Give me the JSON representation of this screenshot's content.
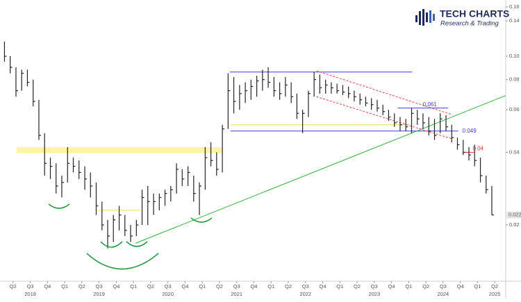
{
  "chart_data": {
    "type": "ohlc",
    "logo_title": "TECH CHARTS",
    "logo_subtitle": "Research & Trading",
    "color": "#222222",
    "log_scale": true,
    "grid": false,
    "xlim": [
      2018.06,
      2025.41
    ],
    "ylim": [
      0.0117,
      0.171
    ],
    "yticks": [
      0.02,
      0.04,
      0.06,
      0.08,
      {
        "value": 0.1,
        "label": "0.10"
      },
      0.14,
      0.16
    ],
    "xticks": [
      {
        "value": 2018.25,
        "label": "Q2"
      },
      {
        "value": 2018.5,
        "label": "Q3"
      },
      {
        "value": 2018.75,
        "label": "Q4"
      },
      {
        "value": 2019,
        "label": "Q1"
      },
      {
        "value": 2019.25,
        "label": "Q2"
      },
      {
        "value": 2019.5,
        "label": "Q3"
      },
      {
        "value": 2019.75,
        "label": "Q4"
      },
      {
        "value": 2020,
        "label": "Q1"
      },
      {
        "value": 2020.25,
        "label": "Q2"
      },
      {
        "value": 2020.5,
        "label": "Q3"
      },
      {
        "value": 2020.75,
        "label": "Q4"
      },
      {
        "value": 2021,
        "label": "Q1"
      },
      {
        "value": 2021.25,
        "label": "Q2"
      },
      {
        "value": 2021.5,
        "label": "Q3"
      },
      {
        "value": 2021.75,
        "label": "Q4"
      },
      {
        "value": 2022,
        "label": "Q1"
      },
      {
        "value": 2022.25,
        "label": "Q2"
      },
      {
        "value": 2022.5,
        "label": "Q3"
      },
      {
        "value": 2022.75,
        "label": "Q4"
      },
      {
        "value": 2023,
        "label": "Q1"
      },
      {
        "value": 2023.25,
        "label": "Q2"
      },
      {
        "value": 2023.5,
        "label": "Q3"
      },
      {
        "value": 2023.75,
        "label": "Q4"
      },
      {
        "value": 2024,
        "label": "Q1"
      },
      {
        "value": 2024.25,
        "label": "Q2"
      },
      {
        "value": 2024.5,
        "label": "Q3"
      },
      {
        "value": 2024.75,
        "label": "Q4"
      },
      {
        "value": 2025,
        "label": "Q1"
      },
      {
        "value": 2025.25,
        "label": "Q2"
      }
    ],
    "year_ticks": [
      {
        "value": 2018.5,
        "label": "2018"
      },
      {
        "value": 2019.5,
        "label": "2019"
      },
      {
        "value": 2020.5,
        "label": "2020"
      },
      {
        "value": 2021.5,
        "label": "2021"
      },
      {
        "value": 2022.5,
        "label": "2022"
      },
      {
        "value": 2023.5,
        "label": "2023"
      },
      {
        "value": 2024.5,
        "label": "2024"
      },
      {
        "value": 2025.25,
        "label": "2025"
      }
    ],
    "x": [
      2018.125,
      2018.208,
      2018.292,
      2018.375,
      2018.458,
      2018.542,
      2018.625,
      2018.708,
      2018.792,
      2018.875,
      2018.958,
      2019.042,
      2019.125,
      2019.208,
      2019.292,
      2019.375,
      2019.458,
      2019.542,
      2019.625,
      2019.708,
      2019.792,
      2019.875,
      2019.958,
      2020.042,
      2020.125,
      2020.208,
      2020.292,
      2020.375,
      2020.458,
      2020.542,
      2020.625,
      2020.708,
      2020.792,
      2020.875,
      2020.958,
      2021.042,
      2021.125,
      2021.208,
      2021.292,
      2021.375,
      2021.458,
      2021.542,
      2021.625,
      2021.708,
      2021.792,
      2021.875,
      2021.958,
      2022.042,
      2022.125,
      2022.208,
      2022.292,
      2022.375,
      2022.458,
      2022.542,
      2022.625,
      2022.708,
      2022.792,
      2022.875,
      2022.958,
      2023.042,
      2023.125,
      2023.208,
      2023.292,
      2023.375,
      2023.458,
      2023.542,
      2023.625,
      2023.708,
      2023.792,
      2023.875,
      2023.958,
      2024.042,
      2024.125,
      2024.208,
      2024.292,
      2024.375,
      2024.458,
      2024.542,
      2024.625,
      2024.708,
      2024.792,
      2024.875,
      2024.958,
      2025.042,
      2025.125,
      2025.208
    ],
    "high": [
      0.115,
      0.1,
      0.09,
      0.088,
      0.088,
      0.08,
      0.066,
      0.048,
      0.038,
      0.036,
      0.032,
      0.042,
      0.038,
      0.037,
      0.035,
      0.033,
      0.03,
      0.025,
      0.021,
      0.022,
      0.024,
      0.022,
      0.02,
      0.021,
      0.028,
      0.029,
      0.027,
      0.027,
      0.028,
      0.029,
      0.036,
      0.034,
      0.035,
      0.032,
      0.03,
      0.042,
      0.044,
      0.04,
      0.052,
      0.085,
      0.082,
      0.076,
      0.078,
      0.08,
      0.083,
      0.088,
      0.09,
      0.082,
      0.078,
      0.082,
      0.078,
      0.07,
      0.06,
      0.072,
      0.086,
      0.084,
      0.08,
      0.078,
      0.077,
      0.076,
      0.075,
      0.072,
      0.07,
      0.068,
      0.067,
      0.066,
      0.063,
      0.06,
      0.058,
      0.056,
      0.055,
      0.061,
      0.06,
      0.058,
      0.056,
      0.055,
      0.058,
      0.057,
      0.052,
      0.046,
      0.045,
      0.042,
      0.043,
      0.038,
      0.032,
      0.029
    ],
    "low": [
      0.095,
      0.085,
      0.068,
      0.072,
      0.075,
      0.062,
      0.045,
      0.032,
      0.031,
      0.027,
      0.026,
      0.03,
      0.033,
      0.031,
      0.028,
      0.026,
      0.022,
      0.019,
      0.016,
      0.017,
      0.019,
      0.018,
      0.017,
      0.018,
      0.02,
      0.02,
      0.022,
      0.023,
      0.024,
      0.025,
      0.027,
      0.029,
      0.029,
      0.025,
      0.022,
      0.028,
      0.035,
      0.032,
      0.033,
      0.05,
      0.058,
      0.06,
      0.064,
      0.066,
      0.068,
      0.072,
      0.074,
      0.068,
      0.066,
      0.068,
      0.064,
      0.055,
      0.048,
      0.056,
      0.068,
      0.07,
      0.07,
      0.07,
      0.07,
      0.069,
      0.067,
      0.065,
      0.063,
      0.062,
      0.06,
      0.059,
      0.057,
      0.054,
      0.051,
      0.049,
      0.049,
      0.048,
      0.052,
      0.05,
      0.047,
      0.045,
      0.048,
      0.049,
      0.044,
      0.041,
      0.039,
      0.037,
      0.035,
      0.03,
      0.027,
      0.022
    ],
    "close": [
      0.1,
      0.09,
      0.072,
      0.085,
      0.078,
      0.065,
      0.047,
      0.036,
      0.035,
      0.029,
      0.03,
      0.036,
      0.035,
      0.033,
      0.031,
      0.029,
      0.024,
      0.02,
      0.018,
      0.021,
      0.022,
      0.019,
      0.018,
      0.02,
      0.026,
      0.025,
      0.025,
      0.026,
      0.027,
      0.028,
      0.034,
      0.031,
      0.033,
      0.027,
      0.029,
      0.038,
      0.037,
      0.034,
      0.05,
      0.072,
      0.065,
      0.07,
      0.072,
      0.075,
      0.079,
      0.08,
      0.078,
      0.072,
      0.07,
      0.076,
      0.068,
      0.058,
      0.058,
      0.07,
      0.08,
      0.074,
      0.076,
      0.074,
      0.072,
      0.071,
      0.07,
      0.068,
      0.066,
      0.064,
      0.063,
      0.061,
      0.059,
      0.056,
      0.053,
      0.052,
      0.051,
      0.058,
      0.055,
      0.053,
      0.049,
      0.047,
      0.055,
      0.051,
      0.046,
      0.043,
      0.04,
      0.039,
      0.037,
      0.032,
      0.028,
      0.022
    ],
    "zones": [
      {
        "low": 0.0397,
        "high": 0.042,
        "start": 2018.3,
        "end": 2021.3,
        "color": "#fff4a3"
      }
    ],
    "levels": [
      {
        "value": 0.086,
        "start": 2021.4,
        "end": 2024.05,
        "color": "#3b3bd1",
        "labeled": false
      },
      {
        "value": 0.061,
        "start": 2023.84,
        "end": 2024.57,
        "color": "#3b3bd1",
        "labeled": true
      },
      {
        "value": 0.049,
        "start": 2021.41,
        "end": 2024.72,
        "color": "#3b3bd1",
        "labeled": true
      },
      {
        "value": 0.04,
        "start": 2024.82,
        "end": 2024.95,
        "color": "#e03030",
        "labeled": true
      },
      {
        "value": 0.052,
        "start": 2021.41,
        "end": 2024.0,
        "color": "#f5ea8a",
        "labeled": false
      },
      {
        "value": 0.023,
        "start": 2019.5,
        "end": 2020.1,
        "color": "#f5ea8a",
        "labeled": false
      }
    ],
    "trendlines": [
      {
        "x": [
          2020.03,
          2025.64
        ],
        "y": [
          0.0168,
          0.073
        ],
        "color": "#2fae3a",
        "dashed": false
      },
      {
        "x": [
          2022.66,
          2024.63
        ],
        "y": [
          0.087,
          0.0573
        ],
        "color": "#e04848",
        "dashed": true
      },
      {
        "x": [
          2022.66,
          2024.63
        ],
        "y": [
          0.068,
          0.0455
        ],
        "color": "#e04848",
        "dashed": true
      }
    ]
  }
}
